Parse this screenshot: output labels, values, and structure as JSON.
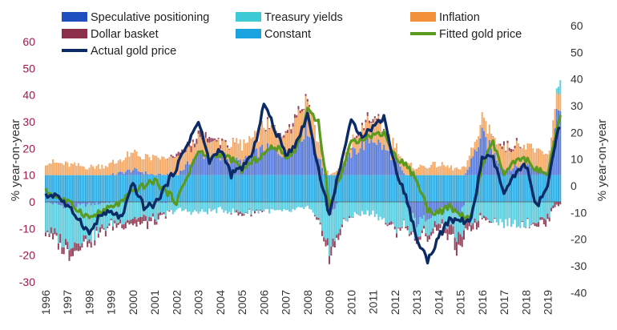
{
  "chart_data": {
    "type": "bar",
    "title": "",
    "xlabel": "",
    "ylabel_left": "% year-on-year",
    "ylabel_right": "% year-on-year",
    "ylim_left": [
      -30,
      60
    ],
    "ylim_right": [
      -40,
      60
    ],
    "yticks_left": [
      "60",
      "50",
      "40",
      "30",
      "20",
      "10",
      "0",
      "-10",
      "-20",
      "-30"
    ],
    "yticks_right": [
      "60",
      "50",
      "40",
      "30",
      "20",
      "10",
      "0",
      "-10",
      "-20",
      "-30",
      "-40"
    ],
    "x_range": [
      1996.0,
      2019.6
    ],
    "categories": [
      "1996",
      "1997",
      "1998",
      "1999",
      "2000",
      "2001",
      "2002",
      "2003",
      "2004",
      "2005",
      "2006",
      "2007",
      "2008",
      "2009",
      "2010",
      "2011",
      "2012",
      "2013",
      "2014",
      "2015",
      "2016",
      "2017",
      "2018",
      "2019"
    ],
    "grid": false,
    "legend_position": "top",
    "legend": [
      {
        "label": "Speculative positioning",
        "color": "#1f4fbf",
        "kind": "bar"
      },
      {
        "label": "Treasury yields",
        "color": "#3ec9d6",
        "kind": "bar"
      },
      {
        "label": "Inflation",
        "color": "#f2913a",
        "kind": "bar"
      },
      {
        "label": "Dollar basket",
        "color": "#8b2f4a",
        "kind": "bar"
      },
      {
        "label": "Constant",
        "color": "#1ba3e0",
        "kind": "bar"
      },
      {
        "label": "Fitted gold price",
        "color": "#5a9a1e",
        "kind": "line"
      },
      {
        "label": "Actual gold price",
        "color": "#0c2a66",
        "kind": "line"
      }
    ],
    "colors": {
      "speculative": "#4a6fd4",
      "treasury": "#4cc9dc",
      "inflation": "#f2a35c",
      "dollar": "#8b2f4a",
      "constant": "#1ba3e0",
      "fitted": "#5a9a1e",
      "actual": "#0c2a66",
      "left_axis_text": "#a3144e"
    },
    "series_axis": {
      "stacked_components": "left",
      "fitted_gold_price": "left",
      "actual_gold_price": "left"
    },
    "components_step_years": 0.0833,
    "components": {
      "speculative_positioning": [
        [
          1996.0,
          0
        ],
        [
          1997,
          -2
        ],
        [
          1998,
          -1
        ],
        [
          1999,
          0
        ],
        [
          2000,
          2
        ],
        [
          2001,
          0
        ],
        [
          2002,
          0
        ],
        [
          2003,
          8
        ],
        [
          2004,
          6
        ],
        [
          2005,
          5
        ],
        [
          2006,
          10
        ],
        [
          2007,
          8
        ],
        [
          2008,
          18
        ],
        [
          2009,
          -5
        ],
        [
          2010,
          8
        ],
        [
          2011,
          14
        ],
        [
          2012,
          6
        ],
        [
          2013,
          -8
        ],
        [
          2014,
          -3
        ],
        [
          2015,
          -4
        ],
        [
          2016,
          15
        ],
        [
          2017,
          2
        ],
        [
          2018,
          4
        ],
        [
          2019,
          1
        ],
        [
          2019.6,
          30
        ]
      ],
      "treasury_yields": [
        [
          1996.0,
          -10
        ],
        [
          1997,
          -14
        ],
        [
          1998,
          -12
        ],
        [
          1999,
          -8
        ],
        [
          2000,
          -6
        ],
        [
          2001,
          -6
        ],
        [
          2002,
          -3
        ],
        [
          2003,
          -4
        ],
        [
          2004,
          -3
        ],
        [
          2005,
          -4
        ],
        [
          2006,
          -3
        ],
        [
          2007,
          -4
        ],
        [
          2008,
          -2
        ],
        [
          2009,
          -14
        ],
        [
          2010,
          -5
        ],
        [
          2011,
          -4
        ],
        [
          2012,
          -10
        ],
        [
          2013,
          -6
        ],
        [
          2014,
          -4
        ],
        [
          2015,
          -10
        ],
        [
          2016,
          -5
        ],
        [
          2017,
          -8
        ],
        [
          2018,
          -8
        ],
        [
          2019,
          -6
        ],
        [
          2019.6,
          6
        ]
      ],
      "inflation": [
        [
          1996.0,
          5
        ],
        [
          1997,
          4
        ],
        [
          1998,
          3
        ],
        [
          1999,
          4
        ],
        [
          2000,
          6
        ],
        [
          2001,
          6
        ],
        [
          2002,
          6
        ],
        [
          2003,
          5
        ],
        [
          2004,
          6
        ],
        [
          2005,
          6
        ],
        [
          2006,
          8
        ],
        [
          2007,
          8
        ],
        [
          2008,
          12
        ],
        [
          2009,
          0
        ],
        [
          2010,
          4
        ],
        [
          2011,
          8
        ],
        [
          2012,
          5
        ],
        [
          2013,
          3
        ],
        [
          2014,
          4
        ],
        [
          2015,
          2
        ],
        [
          2016,
          5
        ],
        [
          2017,
          8
        ],
        [
          2018,
          8
        ],
        [
          2019,
          6
        ],
        [
          2019.6,
          7
        ]
      ],
      "dollar_basket": [
        [
          1996.0,
          -1
        ],
        [
          1997,
          -3
        ],
        [
          1998,
          -2
        ],
        [
          1999,
          -1
        ],
        [
          2000,
          -2
        ],
        [
          2001,
          -2
        ],
        [
          2002,
          1
        ],
        [
          2003,
          2
        ],
        [
          2004,
          1
        ],
        [
          2005,
          -1
        ],
        [
          2006,
          0
        ],
        [
          2007,
          1
        ],
        [
          2008,
          1
        ],
        [
          2009,
          -3
        ],
        [
          2010,
          0
        ],
        [
          2011,
          1
        ],
        [
          2012,
          -1
        ],
        [
          2013,
          -1
        ],
        [
          2014,
          -2
        ],
        [
          2015,
          -5
        ],
        [
          2016,
          -1
        ],
        [
          2017,
          1
        ],
        [
          2018,
          0
        ],
        [
          2019,
          -2
        ],
        [
          2019.6,
          -1
        ]
      ],
      "constant": [
        [
          1996.0,
          10
        ],
        [
          2019.6,
          10
        ]
      ]
    },
    "fitted_gold_price": [
      [
        1996.0,
        4
      ],
      [
        1996.5,
        2
      ],
      [
        1997,
        0
      ],
      [
        1997.5,
        -3
      ],
      [
        1998,
        -6
      ],
      [
        1998.5,
        -4
      ],
      [
        1999,
        -2
      ],
      [
        1999.5,
        0
      ],
      [
        2000,
        4
      ],
      [
        2000.5,
        6
      ],
      [
        2001,
        8
      ],
      [
        2001.5,
        4
      ],
      [
        2002,
        0
      ],
      [
        2002.5,
        10
      ],
      [
        2003,
        19
      ],
      [
        2003.5,
        16
      ],
      [
        2004,
        18
      ],
      [
        2004.5,
        16
      ],
      [
        2005,
        12
      ],
      [
        2005.5,
        15
      ],
      [
        2006,
        18
      ],
      [
        2006.5,
        21
      ],
      [
        2007,
        17
      ],
      [
        2007.5,
        20
      ],
      [
        2008,
        35
      ],
      [
        2008.5,
        30
      ],
      [
        2009,
        -2
      ],
      [
        2009.5,
        10
      ],
      [
        2010,
        22
      ],
      [
        2010.5,
        24
      ],
      [
        2011,
        25
      ],
      [
        2011.5,
        26
      ],
      [
        2012,
        17
      ],
      [
        2012.5,
        14
      ],
      [
        2013,
        8
      ],
      [
        2013.5,
        -3
      ],
      [
        2014,
        -4
      ],
      [
        2014.5,
        -2
      ],
      [
        2015,
        -5
      ],
      [
        2015.5,
        -6
      ],
      [
        2016,
        14
      ],
      [
        2016.5,
        22
      ],
      [
        2017,
        10
      ],
      [
        2017.5,
        15
      ],
      [
        2018,
        16
      ],
      [
        2018.5,
        12
      ],
      [
        2019,
        10
      ],
      [
        2019.5,
        30
      ],
      [
        2019.6,
        32
      ]
    ],
    "actual_gold_price": [
      [
        1996.0,
        2
      ],
      [
        1996.5,
        3
      ],
      [
        1997,
        -2
      ],
      [
        1997.5,
        -6
      ],
      [
        1998,
        -12
      ],
      [
        1998.5,
        -5
      ],
      [
        1999,
        -4
      ],
      [
        1999.5,
        -6
      ],
      [
        2000,
        7
      ],
      [
        2000.5,
        -2
      ],
      [
        2001,
        -1
      ],
      [
        2001.5,
        6
      ],
      [
        2002,
        13
      ],
      [
        2002.5,
        22
      ],
      [
        2003,
        30
      ],
      [
        2003.5,
        15
      ],
      [
        2004,
        20
      ],
      [
        2004.5,
        10
      ],
      [
        2005,
        13
      ],
      [
        2005.5,
        18
      ],
      [
        2006,
        37
      ],
      [
        2006.5,
        27
      ],
      [
        2007,
        18
      ],
      [
        2007.5,
        22
      ],
      [
        2008,
        33
      ],
      [
        2008.5,
        12
      ],
      [
        2009,
        -5
      ],
      [
        2009.5,
        14
      ],
      [
        2010,
        30
      ],
      [
        2010.5,
        25
      ],
      [
        2011,
        28
      ],
      [
        2011.5,
        32
      ],
      [
        2012,
        13
      ],
      [
        2012.5,
        2
      ],
      [
        2013,
        -14
      ],
      [
        2013.5,
        -22
      ],
      [
        2014,
        -13
      ],
      [
        2014.5,
        -7
      ],
      [
        2015,
        -7
      ],
      [
        2015.5,
        -7
      ],
      [
        2016,
        17
      ],
      [
        2016.5,
        16
      ],
      [
        2017,
        3
      ],
      [
        2017.5,
        10
      ],
      [
        2018,
        14
      ],
      [
        2018.5,
        -2
      ],
      [
        2019,
        6
      ],
      [
        2019.5,
        28
      ],
      [
        2019.6,
        26
      ]
    ]
  }
}
